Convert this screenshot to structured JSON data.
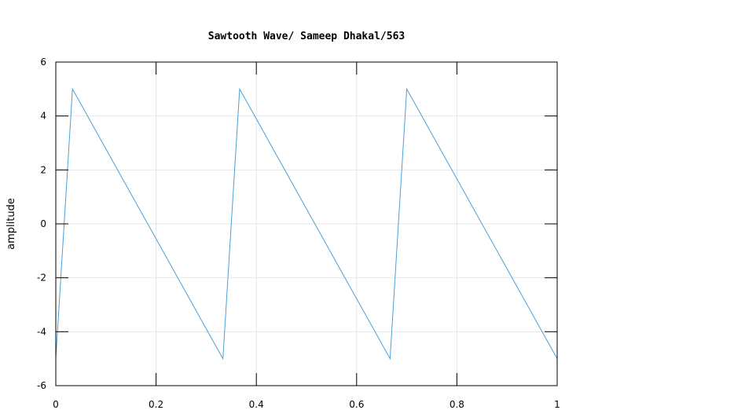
{
  "chart_data": {
    "type": "line",
    "title": "Sawtooth Wave/ Sameep Dhakal/563",
    "xlabel": "",
    "ylabel": "amplitude",
    "xlim": [
      0,
      1
    ],
    "ylim": [
      -6,
      6
    ],
    "xticks": [
      0,
      0.2,
      0.4,
      0.6,
      0.8,
      1
    ],
    "xtick_labels": [
      "0",
      "0.2",
      "0.4",
      "0.6",
      "0.8",
      "1"
    ],
    "yticks": [
      -6,
      -4,
      -2,
      0,
      2,
      4,
      6
    ],
    "ytick_labels": [
      "-6",
      "-4",
      "-2",
      "0",
      "2",
      "4",
      "6"
    ],
    "grid": true,
    "series": [
      {
        "color": "#4c9fd4",
        "x": [
          0,
          0.0333,
          0.3333,
          0.3667,
          0.6667,
          0.7,
          1.0
        ],
        "y": [
          -5,
          5,
          -5,
          5,
          -5,
          5,
          -5
        ]
      }
    ]
  }
}
